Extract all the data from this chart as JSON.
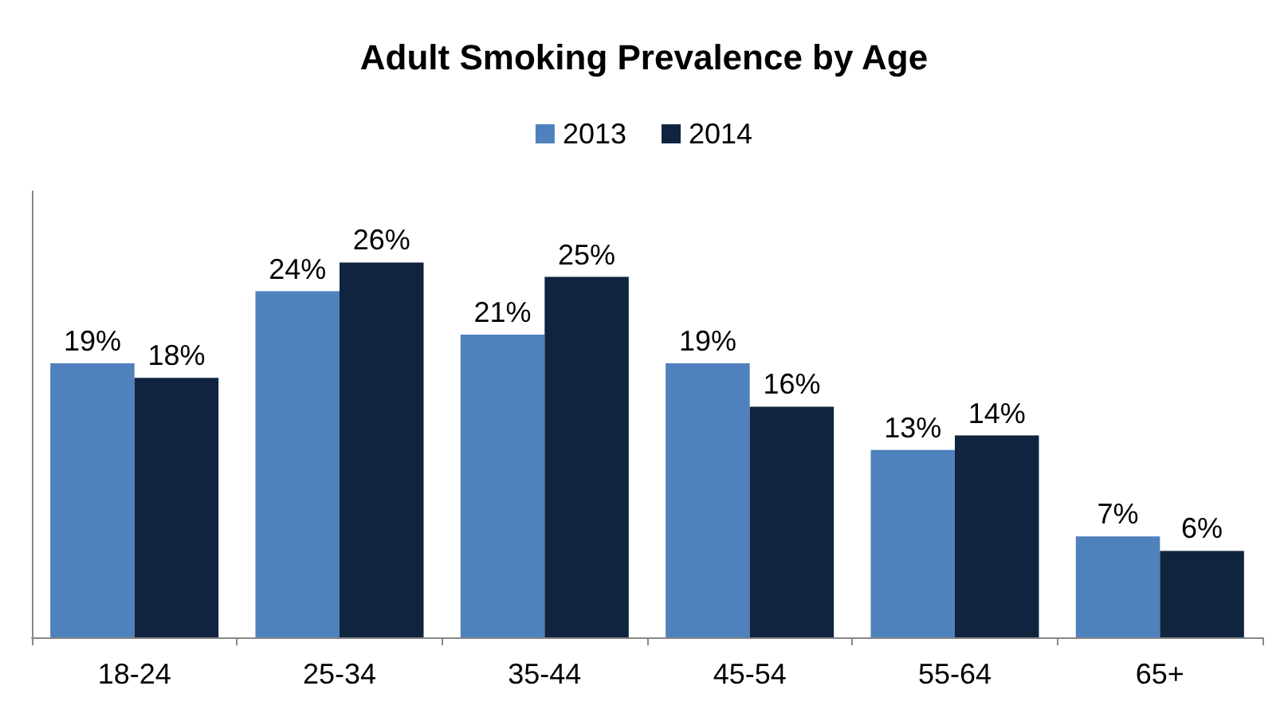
{
  "chart_data": {
    "type": "bar",
    "title": "Adult Smoking Prevalence by Age",
    "categories": [
      "18-24",
      "25-34",
      "35-44",
      "45-54",
      "55-64",
      "65+"
    ],
    "series": [
      {
        "name": "2013",
        "color": "#4f81bd",
        "values": [
          19,
          24,
          21,
          19,
          13,
          7
        ],
        "value_labels": [
          "19%",
          "24%",
          "21%",
          "19%",
          "13%",
          "7%"
        ]
      },
      {
        "name": "2014",
        "color": "#10243f",
        "values": [
          18,
          26,
          25,
          16,
          14,
          6
        ],
        "value_labels": [
          "18%",
          "26%",
          "25%",
          "16%",
          "14%",
          "6%"
        ]
      }
    ],
    "legend": "top",
    "grid": false
  }
}
